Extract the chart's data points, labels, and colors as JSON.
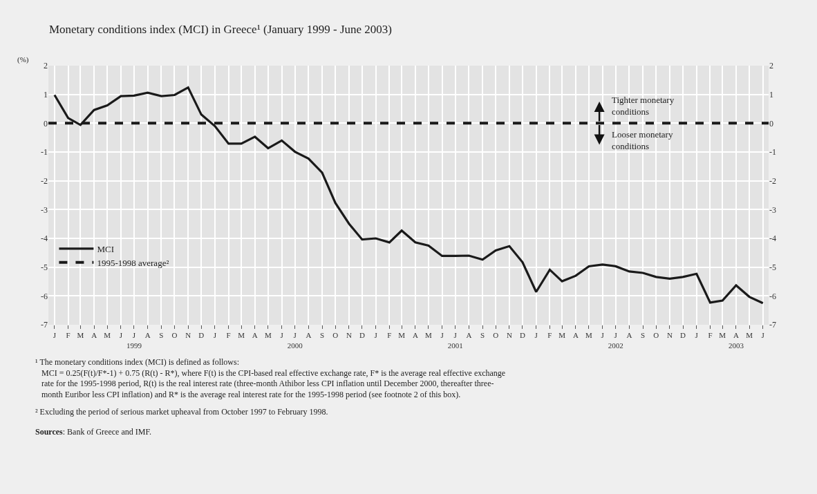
{
  "chart_data": {
    "type": "line",
    "title": "Monetary conditions index (MCI) in Greece¹ (January 1999 - June 2003)",
    "ylabel": "(%)",
    "x": [
      "1999-01",
      "1999-02",
      "1999-03",
      "1999-04",
      "1999-05",
      "1999-06",
      "1999-07",
      "1999-08",
      "1999-09",
      "1999-10",
      "1999-11",
      "1999-12",
      "2000-01",
      "2000-02",
      "2000-03",
      "2000-04",
      "2000-05",
      "2000-06",
      "2000-07",
      "2000-08",
      "2000-09",
      "2000-10",
      "2000-11",
      "2000-12",
      "2001-01",
      "2001-02",
      "2001-03",
      "2001-04",
      "2001-05",
      "2001-06",
      "2001-07",
      "2001-08",
      "2001-09",
      "2001-10",
      "2001-11",
      "2001-12",
      "2002-01",
      "2002-02",
      "2002-03",
      "2002-04",
      "2002-05",
      "2002-06",
      "2002-07",
      "2002-08",
      "2002-09",
      "2002-10",
      "2002-11",
      "2002-12",
      "2003-01",
      "2003-02",
      "2003-03",
      "2003-04",
      "2003-05",
      "2003-06"
    ],
    "series": [
      {
        "name": "MCI",
        "color": "#1a1a1a",
        "values": [
          0.98,
          0.18,
          -0.06,
          0.46,
          0.62,
          0.94,
          0.96,
          1.06,
          0.94,
          0.98,
          1.24,
          0.3,
          -0.1,
          -0.71,
          -0.71,
          -0.47,
          -0.87,
          -0.6,
          -0.99,
          -1.23,
          -1.72,
          -2.77,
          -3.49,
          -4.04,
          -4.0,
          -4.14,
          -3.73,
          -4.14,
          -4.25,
          -4.61,
          -4.61,
          -4.6,
          -4.74,
          -4.42,
          -4.27,
          -4.83,
          -5.86,
          -5.09,
          -5.49,
          -5.3,
          -4.97,
          -4.91,
          -4.97,
          -5.15,
          -5.2,
          -5.34,
          -5.4,
          -5.34,
          -5.23,
          -6.23,
          -6.16,
          -5.63,
          -6.03,
          -6.25
        ]
      }
    ],
    "line_style": "solid",
    "ref_lines": [
      {
        "axis": "y",
        "value": 0,
        "label": "1995-1998 average²",
        "color": "#1a1a1a",
        "line_style": "dashed"
      }
    ],
    "xlim": [
      "1998-12-18",
      "2003-06-14"
    ],
    "xticks": [
      {
        "value": "1999-01",
        "label": "J"
      },
      {
        "value": "1999-02",
        "label": "F"
      },
      {
        "value": "1999-03",
        "label": "M"
      },
      {
        "value": "1999-04",
        "label": "A"
      },
      {
        "value": "1999-05",
        "label": "M"
      },
      {
        "value": "1999-06",
        "label": "J"
      },
      {
        "value": "1999-07",
        "label": "J\n1999"
      },
      {
        "value": "1999-08",
        "label": "A"
      },
      {
        "value": "1999-09",
        "label": "S"
      },
      {
        "value": "1999-10",
        "label": "O"
      },
      {
        "value": "1999-11",
        "label": "N"
      },
      {
        "value": "1999-12",
        "label": "D"
      },
      {
        "value": "2000-01",
        "label": "J"
      },
      {
        "value": "2000-02",
        "label": "F"
      },
      {
        "value": "2000-03",
        "label": "M"
      },
      {
        "value": "2000-04",
        "label": "A"
      },
      {
        "value": "2000-05",
        "label": "M"
      },
      {
        "value": "2000-06",
        "label": "J"
      },
      {
        "value": "2000-07",
        "label": "J\n2000"
      },
      {
        "value": "2000-08",
        "label": "A"
      },
      {
        "value": "2000-09",
        "label": "S"
      },
      {
        "value": "2000-10",
        "label": "O"
      },
      {
        "value": "2000-11",
        "label": "N"
      },
      {
        "value": "2000-12",
        "label": "D"
      },
      {
        "value": "2001-01",
        "label": "J"
      },
      {
        "value": "2001-02",
        "label": "F"
      },
      {
        "value": "2001-03",
        "label": "M"
      },
      {
        "value": "2001-04",
        "label": "A"
      },
      {
        "value": "2001-05",
        "label": "M"
      },
      {
        "value": "2001-06",
        "label": "J"
      },
      {
        "value": "2001-07",
        "label": "J\n2001"
      },
      {
        "value": "2001-08",
        "label": "A"
      },
      {
        "value": "2001-09",
        "label": "S"
      },
      {
        "value": "2001-10",
        "label": "O"
      },
      {
        "value": "2001-11",
        "label": "N"
      },
      {
        "value": "2001-12",
        "label": "D"
      },
      {
        "value": "2002-01",
        "label": "J"
      },
      {
        "value": "2002-02",
        "label": "F"
      },
      {
        "value": "2002-03",
        "label": "M"
      },
      {
        "value": "2002-04",
        "label": "A"
      },
      {
        "value": "2002-05",
        "label": "M"
      },
      {
        "value": "2002-06",
        "label": "J"
      },
      {
        "value": "2002-07",
        "label": "J\n2002"
      },
      {
        "value": "2002-08",
        "label": "A"
      },
      {
        "value": "2002-09",
        "label": "S"
      },
      {
        "value": "2002-10",
        "label": "O"
      },
      {
        "value": "2002-11",
        "label": "N"
      },
      {
        "value": "2002-12",
        "label": "D"
      },
      {
        "value": "2003-01",
        "label": "J"
      },
      {
        "value": "2003-02",
        "label": "F"
      },
      {
        "value": "2003-03",
        "label": "M"
      },
      {
        "value": "2003-04",
        "label": "A\n2003"
      },
      {
        "value": "2003-05",
        "label": "M"
      },
      {
        "value": "2003-06",
        "label": "J"
      }
    ],
    "ylim": [
      -7,
      2
    ],
    "yticks": [
      2,
      1,
      0,
      -1,
      -2,
      -3,
      -4,
      -5,
      -6,
      -7
    ],
    "y2lim": [
      -7,
      2
    ],
    "y2ticks": [
      2,
      1,
      0,
      -1,
      -2,
      -3,
      -4,
      -5,
      -6,
      -7
    ],
    "grid": true,
    "legend": "bottom left",
    "annotations": [
      "Tighter monetary\nconditions",
      "Looser monetary\nconditions",
      "¹ The monetary conditions index (MCI) is defined as follows:\n   MCI = 0.25(F(t)/F*-1) + 0.75 (R(t) - R*), where F(t) is the CPI-based real effective exchange rate, F* is the average real effective exchange\n   rate for the 1995-1998 period, R(t) is the real interest rate (three-month Athibor less CPI inflation until December 2000, thereafter three-\n   month Euribor less CPI inflation) and R* is the average real interest rate for the 1995-1998 period (see footnote 2 of this box).",
      "² Excluding the period of serious market upheaval from October 1997 to February 1998.",
      "Sources: Bank of Greece and IMF."
    ]
  }
}
